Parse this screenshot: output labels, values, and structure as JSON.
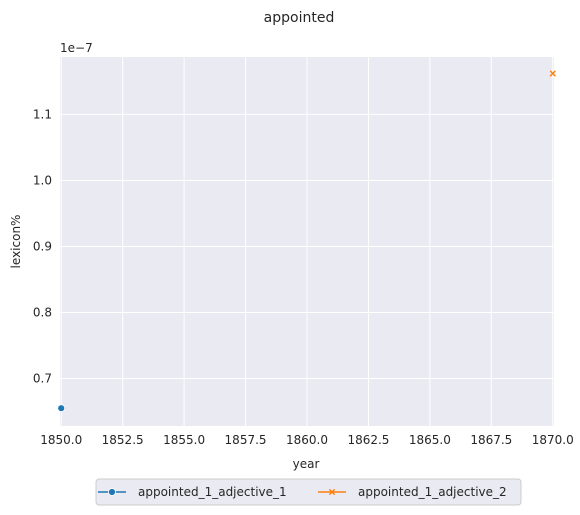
{
  "chart_data": {
    "type": "line",
    "title": "appointed",
    "xlabel": "year",
    "ylabel": "lexicon%",
    "y_offset_label": "1e−7",
    "xlim": [
      1849.95,
      1870.05
    ],
    "ylim": [
      0.628,
      1.187
    ],
    "x_ticks": [
      1850.0,
      1852.5,
      1855.0,
      1857.5,
      1860.0,
      1862.5,
      1865.0,
      1867.5,
      1870.0
    ],
    "x_tick_labels": [
      "1850.0",
      "1852.5",
      "1855.0",
      "1857.5",
      "1860.0",
      "1862.5",
      "1865.0",
      "1867.5",
      "1870.0"
    ],
    "y_ticks": [
      0.7,
      0.8,
      0.9,
      1.0,
      1.1
    ],
    "y_tick_labels": [
      "0.7",
      "0.8",
      "0.9",
      "1.0",
      "1.1"
    ],
    "grid": true,
    "legend_position": "bottom-center",
    "series": [
      {
        "name": "appointed_1_adjective_1",
        "color": "#1f77b4",
        "marker": "circle",
        "points": [
          [
            1850.0,
            0.655
          ]
        ]
      },
      {
        "name": "appointed_1_adjective_2",
        "color": "#ff7f0e",
        "marker": "x",
        "points": [
          [
            1870.0,
            1.162
          ]
        ]
      }
    ]
  }
}
